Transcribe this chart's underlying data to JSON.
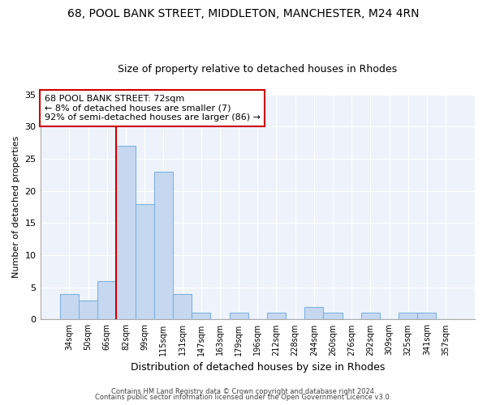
{
  "title1": "68, POOL BANK STREET, MIDDLETON, MANCHESTER, M24 4RN",
  "title2": "Size of property relative to detached houses in Rhodes",
  "xlabel": "Distribution of detached houses by size in Rhodes",
  "ylabel": "Number of detached properties",
  "bin_labels": [
    "34sqm",
    "50sqm",
    "66sqm",
    "82sqm",
    "99sqm",
    "115sqm",
    "131sqm",
    "147sqm",
    "163sqm",
    "179sqm",
    "196sqm",
    "212sqm",
    "228sqm",
    "244sqm",
    "260sqm",
    "276sqm",
    "292sqm",
    "309sqm",
    "325sqm",
    "341sqm",
    "357sqm"
  ],
  "bar_values": [
    4,
    3,
    6,
    27,
    18,
    23,
    4,
    1,
    0,
    1,
    0,
    1,
    0,
    2,
    1,
    0,
    1,
    0,
    1,
    1,
    0
  ],
  "bar_color": "#c5d8f0",
  "bar_edge_color": "#7fb3e0",
  "vline_index": 2,
  "vline_color": "#cc0000",
  "annotation_line1": "68 POOL BANK STREET: 72sqm",
  "annotation_line2": "← 8% of detached houses are smaller (7)",
  "annotation_line3": "92% of semi-detached houses are larger (86) →",
  "annotation_box_edge": "#cc0000",
  "ylim": [
    0,
    35
  ],
  "yticks": [
    0,
    5,
    10,
    15,
    20,
    25,
    30,
    35
  ],
  "footer1": "Contains HM Land Registry data © Crown copyright and database right 2024.",
  "footer2": "Contains public sector information licensed under the Open Government Licence v3.0.",
  "bg_color": "#ffffff",
  "plot_bg_color": "#eef3fb",
  "grid_color": "#ffffff"
}
